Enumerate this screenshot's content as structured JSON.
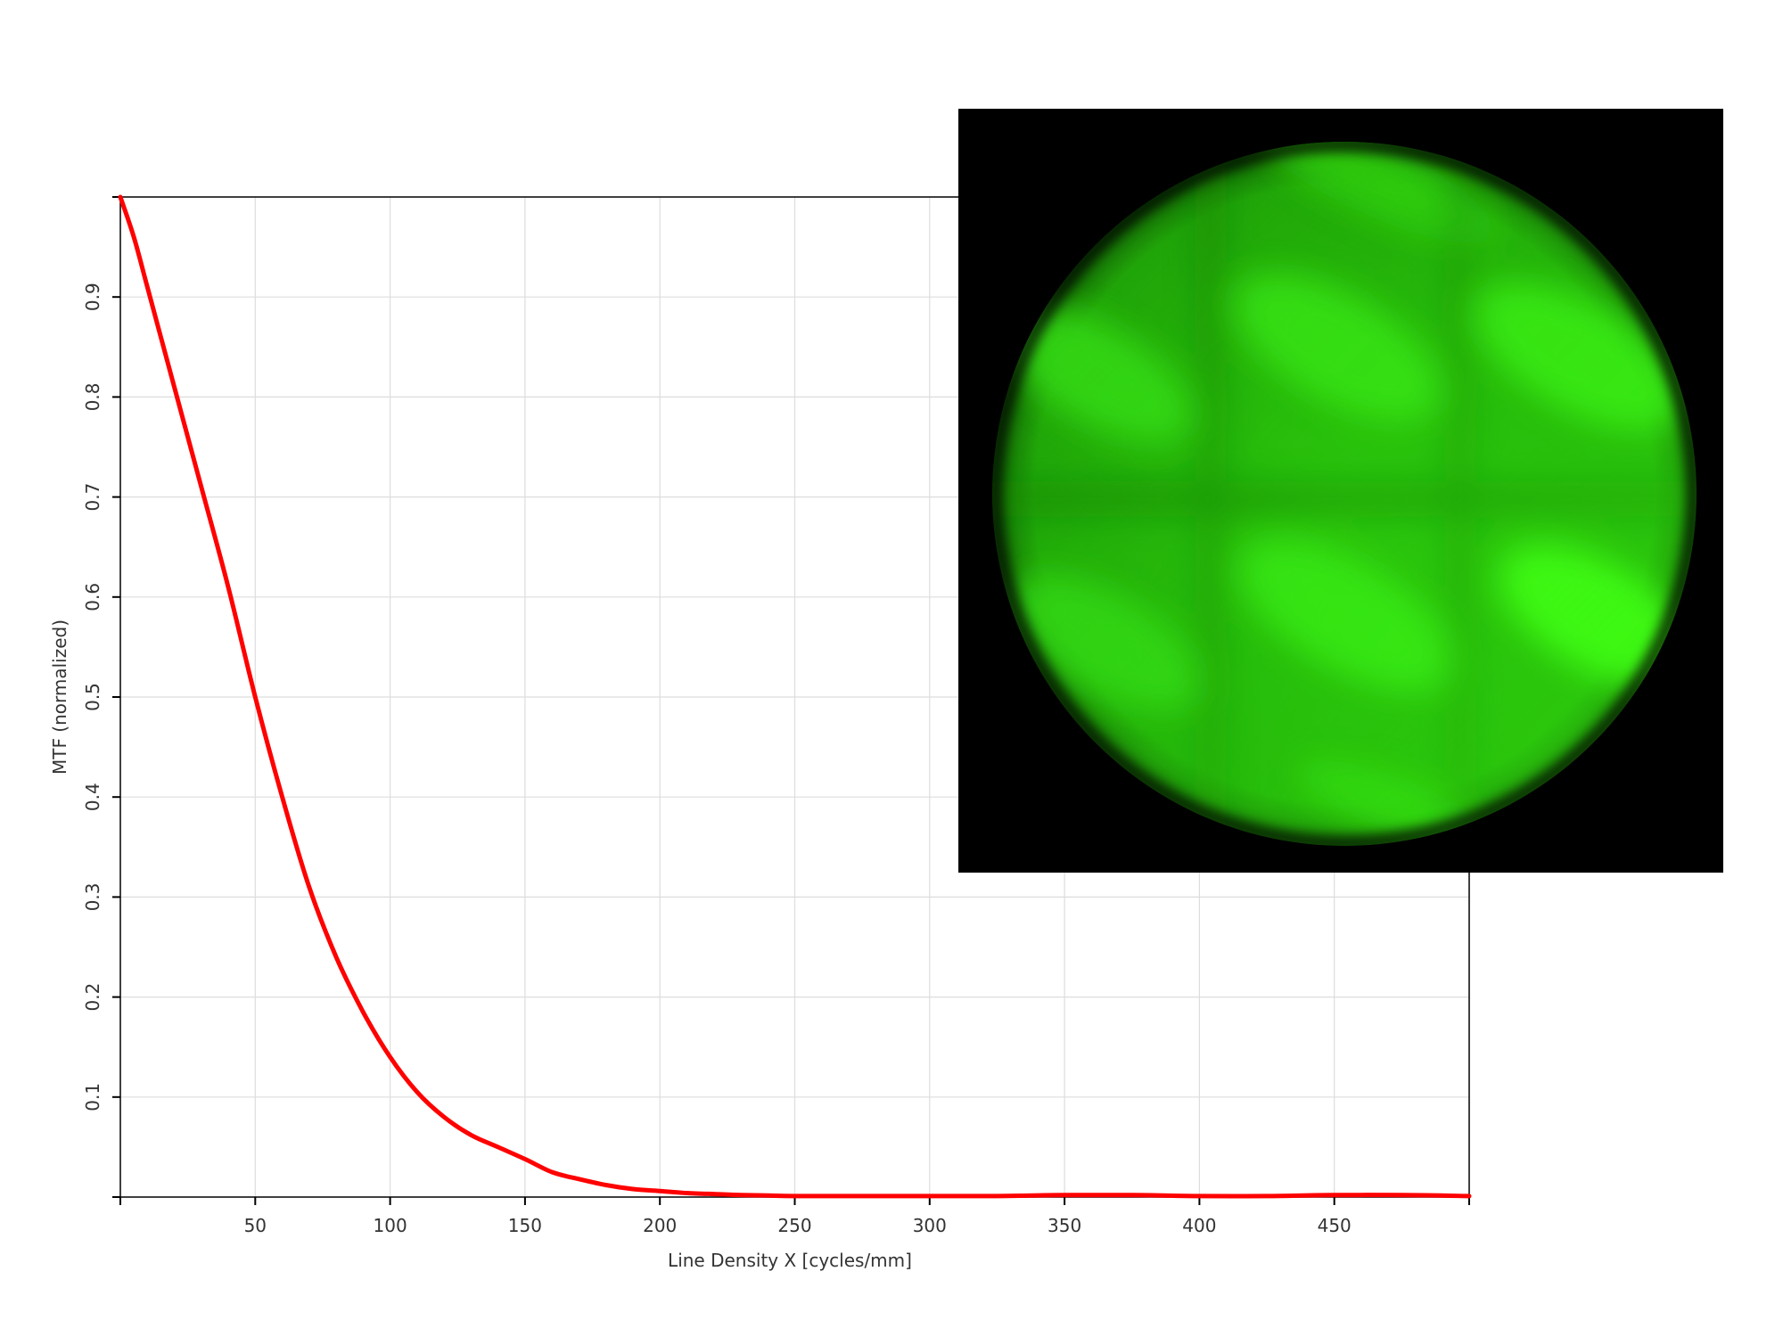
{
  "chart_data": {
    "type": "line",
    "xlabel": "Line Density X [cycles/mm]",
    "ylabel": "MTF (normalized)",
    "xlim": [
      0,
      500
    ],
    "ylim": [
      0,
      1
    ],
    "x_ticks": [
      50,
      100,
      150,
      200,
      250,
      300,
      350,
      400,
      450
    ],
    "y_ticks": [
      0.1,
      0.2,
      0.3,
      0.4,
      0.5,
      0.6,
      0.7,
      0.8,
      0.9
    ],
    "grid": true,
    "series": [
      {
        "color": "#ff0000",
        "x": [
          0,
          5,
          10,
          15,
          20,
          30,
          40,
          50,
          60,
          70,
          80,
          90,
          100,
          110,
          120,
          130,
          140,
          150,
          160,
          170,
          180,
          190,
          200,
          210,
          220,
          230,
          240,
          250,
          275,
          300,
          325,
          350,
          375,
          400,
          425,
          450,
          475,
          500
        ],
        "y": [
          1.0,
          0.96,
          0.91,
          0.86,
          0.81,
          0.71,
          0.61,
          0.5,
          0.4,
          0.31,
          0.24,
          0.185,
          0.14,
          0.105,
          0.08,
          0.062,
          0.05,
          0.038,
          0.025,
          0.018,
          0.012,
          0.008,
          0.006,
          0.004,
          0.003,
          0.002,
          0.0015,
          0.001,
          0.001,
          0.001,
          0.001,
          0.002,
          0.002,
          0.001,
          0.001,
          0.002,
          0.002,
          0.001
        ]
      }
    ]
  },
  "inset": {
    "background": "#000000",
    "disc_color": "#2fd80c"
  }
}
